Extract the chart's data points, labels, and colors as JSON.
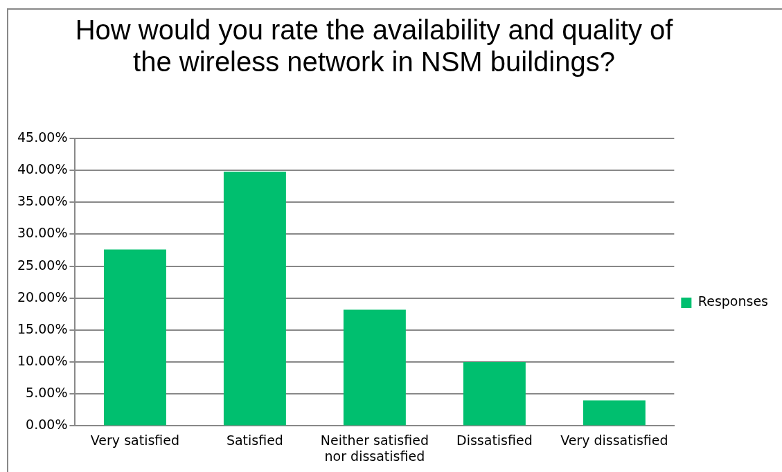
{
  "chart_data": {
    "type": "bar",
    "title": "How would you rate the availability and quality of the wireless network in NSM buildings?",
    "categories": [
      "Very satisfied",
      "Satisfied",
      "Neither satisfied nor dissatisfied",
      "Dissatisfied",
      "Very dissatisfied"
    ],
    "series": [
      {
        "name": "Responses",
        "color": "#00bf6f",
        "values": [
          27.6,
          39.8,
          18.2,
          10.0,
          4.0
        ]
      }
    ],
    "ylim": [
      0,
      45
    ],
    "yticks": [
      {
        "value": 0,
        "label": "0.00%"
      },
      {
        "value": 5,
        "label": "5.00%"
      },
      {
        "value": 10,
        "label": "10.00%"
      },
      {
        "value": 15,
        "label": "15.00%"
      },
      {
        "value": 20,
        "label": "20.00%"
      },
      {
        "value": 25,
        "label": "25.00%"
      },
      {
        "value": 30,
        "label": "30.00%"
      },
      {
        "value": 35,
        "label": "35.00%"
      },
      {
        "value": 40,
        "label": "40.00%"
      },
      {
        "value": 45,
        "label": "45.00%"
      }
    ],
    "grid": "y",
    "legend": "right"
  }
}
